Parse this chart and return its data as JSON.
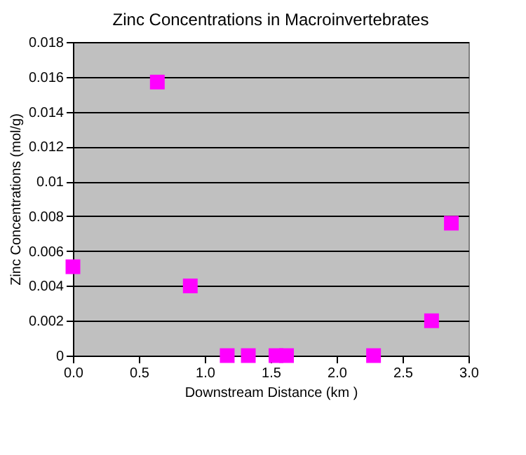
{
  "chart_data": {
    "type": "scatter",
    "title": "Zinc Concentrations in Macroinvertebrates",
    "xlabel": "Downstream Distance (km )",
    "ylabel": "Zinc Concentrations (mol/g)",
    "x": [
      0.0,
      0.64,
      0.89,
      1.17,
      1.33,
      1.54,
      1.62,
      2.28,
      2.72,
      2.87
    ],
    "series": [
      {
        "color": "#ff00ff",
        "values": [
          0.0051,
          0.0157,
          0.004,
          0,
          0,
          0,
          0,
          0,
          0.002,
          0.0076
        ]
      }
    ],
    "xlim": [
      0,
      3
    ],
    "xticks": [
      {
        "value": 0,
        "label": "0.0"
      },
      0.5,
      {
        "value": 1,
        "label": "1.0"
      },
      1.5,
      {
        "value": 2,
        "label": "2.0"
      },
      2.5,
      {
        "value": 3,
        "label": "3.0"
      }
    ],
    "ylim": [
      0,
      0.018
    ],
    "yticks": [
      0,
      0.002,
      0.004,
      0.006,
      0.008,
      0.01,
      0.012,
      0.014,
      0.016,
      0.018
    ],
    "grid": "y",
    "marker": "square"
  }
}
